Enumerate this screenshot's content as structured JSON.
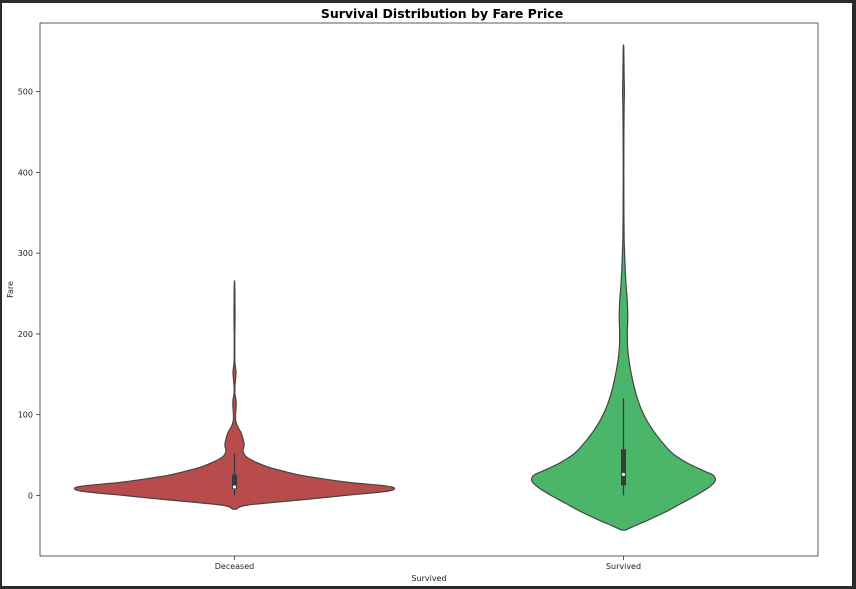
{
  "chart_data": {
    "type": "violin",
    "title": "Survival Distribution by Fare Price",
    "xlabel": "Survived",
    "ylabel": "Fare",
    "categories": [
      "Deceased",
      "Survived"
    ],
    "colors": [
      "#b84c4c",
      "#4bb56a"
    ],
    "edge_color": "#444444",
    "ylim": [
      -75,
      585
    ],
    "yticks": [
      0,
      100,
      200,
      300,
      400,
      500
    ],
    "grid": false,
    "violins": [
      {
        "name": "Deceased",
        "color": "#b84c4c",
        "range": [
          -17,
          263
        ],
        "quartiles": [
          7.9,
          10.5,
          26.0
        ],
        "whiskers": [
          0,
          52
        ],
        "profile": [
          [
            -17,
            0.01
          ],
          [
            -12,
            0.06
          ],
          [
            -5,
            0.33
          ],
          [
            0,
            0.52
          ],
          [
            5,
            0.71
          ],
          [
            9,
            0.75
          ],
          [
            12,
            0.7
          ],
          [
            16,
            0.54
          ],
          [
            20,
            0.43
          ],
          [
            25,
            0.31
          ],
          [
            30,
            0.23
          ],
          [
            35,
            0.16
          ],
          [
            40,
            0.11
          ],
          [
            48,
            0.055
          ],
          [
            55,
            0.04
          ],
          [
            62,
            0.045
          ],
          [
            70,
            0.04
          ],
          [
            78,
            0.03
          ],
          [
            85,
            0.015
          ],
          [
            92,
            0.006
          ],
          [
            100,
            0.005
          ],
          [
            108,
            0.007
          ],
          [
            115,
            0.008
          ],
          [
            120,
            0.006
          ],
          [
            126,
            0.002
          ],
          [
            135,
            0.002
          ],
          [
            145,
            0.005
          ],
          [
            152,
            0.007
          ],
          [
            158,
            0.005
          ],
          [
            165,
            0.002
          ],
          [
            175,
            0.0015
          ],
          [
            200,
            0.0015
          ],
          [
            220,
            0.0025
          ],
          [
            240,
            0.002
          ],
          [
            263,
            0.001
          ]
        ]
      },
      {
        "name": "Survived",
        "color": "#4bb56a",
        "range": [
          -43,
          556
        ],
        "quartiles": [
          12.5,
          26.0,
          57.0
        ],
        "whiskers": [
          0,
          120
        ],
        "profile": [
          [
            -43,
            0.008
          ],
          [
            -38,
            0.05
          ],
          [
            -30,
            0.12
          ],
          [
            -20,
            0.2
          ],
          [
            -10,
            0.27
          ],
          [
            0,
            0.34
          ],
          [
            10,
            0.4
          ],
          [
            18,
            0.43
          ],
          [
            25,
            0.42
          ],
          [
            30,
            0.38
          ],
          [
            40,
            0.3
          ],
          [
            50,
            0.24
          ],
          [
            60,
            0.2
          ],
          [
            80,
            0.14
          ],
          [
            100,
            0.095
          ],
          [
            120,
            0.065
          ],
          [
            140,
            0.045
          ],
          [
            160,
            0.03
          ],
          [
            180,
            0.02
          ],
          [
            200,
            0.018
          ],
          [
            220,
            0.02
          ],
          [
            240,
            0.018
          ],
          [
            260,
            0.012
          ],
          [
            280,
            0.008
          ],
          [
            300,
            0.005
          ],
          [
            320,
            0.003
          ],
          [
            350,
            0.002
          ],
          [
            400,
            0.0015
          ],
          [
            450,
            0.002
          ],
          [
            480,
            0.003
          ],
          [
            500,
            0.004
          ],
          [
            520,
            0.003
          ],
          [
            540,
            0.002
          ],
          [
            556,
            0.001
          ]
        ]
      }
    ]
  }
}
